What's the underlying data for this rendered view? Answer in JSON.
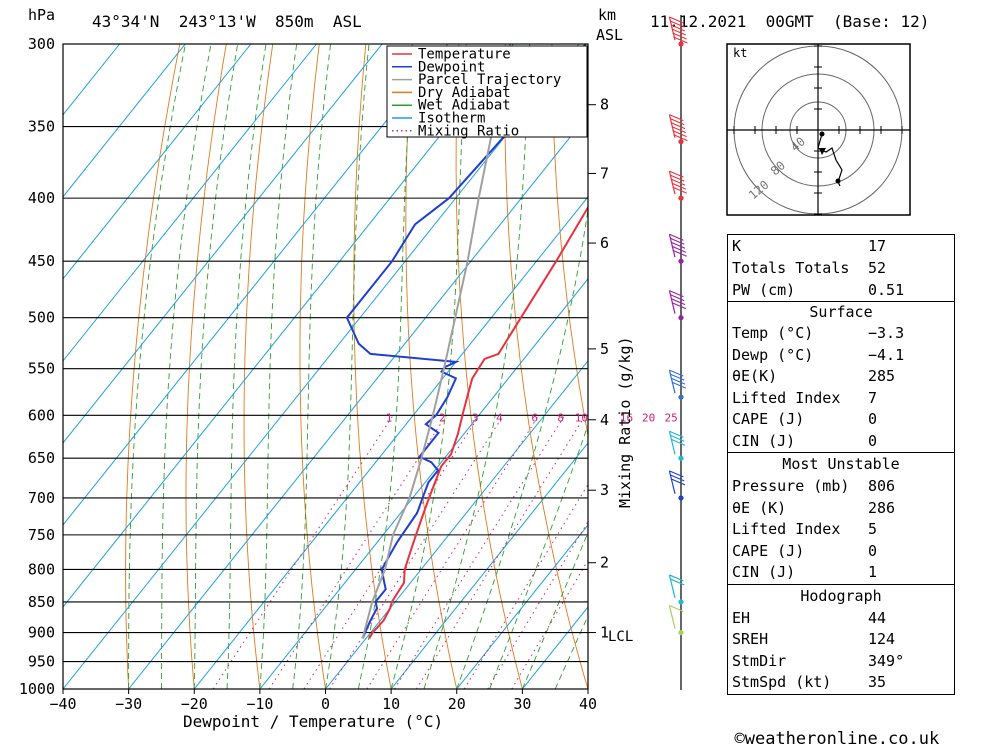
{
  "header": {
    "pressure_unit": "hPa",
    "location": "43°34'N  243°13'W  850m  ASL",
    "height_unit_1": "km",
    "height_unit_2": "ASL",
    "datetime": "11.12.2021  00GMT  (Base: 12)"
  },
  "footer": {
    "copyright_symbol": "©",
    "site": "weatheronline.co.uk"
  },
  "chart_data": {
    "type": "line",
    "title": "43°34'N  243°13'W  850m  ASL",
    "xlabel": "Dewpoint / Temperature (°C)",
    "ylabel": "hPa",
    "mixing_ratio_label": "Mixing Ratio (g/kg)",
    "xlim": [
      -40,
      40
    ],
    "ylim": [
      1000,
      300
    ],
    "x_ticks": [
      "-40",
      "-30",
      "-20",
      "-10",
      "0",
      "10",
      "20",
      "30",
      "40"
    ],
    "pressure_levels": [
      "300",
      "350",
      "400",
      "450",
      "500",
      "550",
      "600",
      "650",
      "700",
      "750",
      "800",
      "850",
      "900",
      "950",
      "1000"
    ],
    "height_ticks": [
      {
        "km": "8",
        "p": 336
      },
      {
        "km": "7",
        "p": 382
      },
      {
        "km": "6",
        "p": 435
      },
      {
        "km": "5",
        "p": 530
      },
      {
        "km": "4",
        "p": 605
      },
      {
        "km": "3",
        "p": 690
      },
      {
        "km": "2",
        "p": 790
      },
      {
        "km": "1",
        "p": 900
      }
    ],
    "lcl_label": "LCL",
    "mixing_ratio_values": [
      "1",
      "2",
      "3",
      "4",
      "6",
      "8",
      "10",
      "16",
      "20",
      "25"
    ],
    "legend": [
      "Temperature",
      "Dewpoint",
      "Parcel Trajectory",
      "Dry Adiabat",
      "Wet Adiabat",
      "Isotherm",
      "Mixing Ratio"
    ],
    "grid": true,
    "series": [
      {
        "name": "Temperature",
        "color": "#e8323c",
        "points": [
          [
            910,
            0.5
          ],
          [
            900,
            0.3
          ],
          [
            880,
            0.5
          ],
          [
            860,
            0
          ],
          [
            850,
            -0.5
          ],
          [
            820,
            -1
          ],
          [
            800,
            -2.5
          ],
          [
            770,
            -4
          ],
          [
            750,
            -5
          ],
          [
            720,
            -6.5
          ],
          [
            700,
            -7.5
          ],
          [
            680,
            -8.5
          ],
          [
            660,
            -9.5
          ],
          [
            645,
            -9.5
          ],
          [
            620,
            -11
          ],
          [
            600,
            -12.5
          ],
          [
            580,
            -14
          ],
          [
            560,
            -15.5
          ],
          [
            540,
            -16
          ],
          [
            535,
            -14.5
          ],
          [
            500,
            -15.5
          ],
          [
            450,
            -17
          ],
          [
            400,
            -19
          ],
          [
            350,
            -21
          ],
          [
            320,
            -22
          ],
          [
            308,
            -22
          ],
          [
            300,
            -23
          ]
        ]
      },
      {
        "name": "Dewpoint",
        "color": "#1f3fd0",
        "points": [
          [
            910,
            -0.5
          ],
          [
            880,
            -1.5
          ],
          [
            860,
            -2
          ],
          [
            850,
            -3
          ],
          [
            830,
            -3
          ],
          [
            820,
            -4
          ],
          [
            800,
            -6
          ],
          [
            780,
            -6.5
          ],
          [
            760,
            -7
          ],
          [
            720,
            -7.5
          ],
          [
            700,
            -8.5
          ],
          [
            680,
            -9.5
          ],
          [
            665,
            -9.5
          ],
          [
            655,
            -11.5
          ],
          [
            648,
            -14
          ],
          [
            640,
            -14
          ],
          [
            620,
            -14
          ],
          [
            610,
            -17
          ],
          [
            600,
            -16.5
          ],
          [
            580,
            -17
          ],
          [
            560,
            -18
          ],
          [
            553,
            -21
          ],
          [
            548,
            -21
          ],
          [
            543,
            -20
          ],
          [
            535,
            -34
          ],
          [
            525,
            -37
          ],
          [
            500,
            -42
          ],
          [
            450,
            -42
          ],
          [
            420,
            -43
          ],
          [
            400,
            -41
          ],
          [
            350,
            -40
          ],
          [
            320,
            -39
          ],
          [
            300,
            -39
          ]
        ]
      },
      {
        "name": "Parcel Trajectory",
        "color": "#a0a0a0",
        "points": [
          [
            910,
            -0.5
          ],
          [
            850,
            -3.5
          ],
          [
            800,
            -5.5
          ],
          [
            750,
            -8.5
          ],
          [
            700,
            -10.5
          ],
          [
            650,
            -13.5
          ],
          [
            600,
            -17
          ],
          [
            550,
            -21
          ],
          [
            500,
            -25.5
          ],
          [
            450,
            -30.5
          ],
          [
            400,
            -36.5
          ],
          [
            350,
            -43
          ],
          [
            300,
            -50.5
          ]
        ]
      }
    ],
    "wind_profile": [
      {
        "p": 300,
        "speed_kt": 55,
        "color": "#e8323c"
      },
      {
        "p": 360,
        "speed_kt": 60,
        "color": "#e8323c"
      },
      {
        "p": 400,
        "speed_kt": 50,
        "color": "#e8323c"
      },
      {
        "p": 450,
        "speed_kt": 45,
        "color": "#9b1fa5"
      },
      {
        "p": 500,
        "speed_kt": 40,
        "color": "#9b1fa5"
      },
      {
        "p": 580,
        "speed_kt": 35,
        "color": "#2f6fd8"
      },
      {
        "p": 650,
        "speed_kt": 30,
        "color": "#1fb8d0"
      },
      {
        "p": 700,
        "speed_kt": 30,
        "color": "#1f3fd0"
      },
      {
        "p": 850,
        "speed_kt": 20,
        "color": "#1fb8d0"
      },
      {
        "p": 900,
        "speed_kt": 10,
        "color": "#a8d060"
      }
    ]
  },
  "hodograph": {
    "unit": "kt",
    "ring_labels": [
      "40",
      "80",
      "120"
    ]
  },
  "indices": {
    "general": [
      {
        "label": "K",
        "value": "17"
      },
      {
        "label": "Totals Totals",
        "value": "52"
      },
      {
        "label": "PW (cm)",
        "value": "0.51"
      }
    ],
    "surface_title": "Surface",
    "surface": [
      {
        "label": "Temp (°C)",
        "value": "-3.3"
      },
      {
        "label": "Dewp (°C)",
        "value": "-4.1"
      },
      {
        "label": "θE(K)",
        "value": "285"
      },
      {
        "label": "Lifted Index",
        "value": "7"
      },
      {
        "label": "CAPE (J)",
        "value": "0"
      },
      {
        "label": "CIN (J)",
        "value": "0"
      }
    ],
    "unstable_title": "Most Unstable",
    "unstable": [
      {
        "label": "Pressure (mb)",
        "value": "806"
      },
      {
        "label": "θE (K)",
        "value": "286"
      },
      {
        "label": "Lifted Index",
        "value": "5"
      },
      {
        "label": "CAPE (J)",
        "value": "0"
      },
      {
        "label": "CIN (J)",
        "value": "1"
      }
    ],
    "hodo_title": "Hodograph",
    "hodo": [
      {
        "label": "EH",
        "value": "44"
      },
      {
        "label": "SREH",
        "value": "124"
      },
      {
        "label": "StmDir",
        "value": "349°"
      },
      {
        "label": "StmSpd (kt)",
        "value": "35"
      }
    ]
  },
  "colors": {
    "temperature": "#e8323c",
    "dewpoint": "#1f3fd0",
    "parcel": "#a0a0a0",
    "dry_adiabat": "#e07a1f",
    "wet_adiabat": "#2ca02c",
    "isotherm": "#1f9fe0",
    "mixing_ratio": "#d0207a"
  }
}
